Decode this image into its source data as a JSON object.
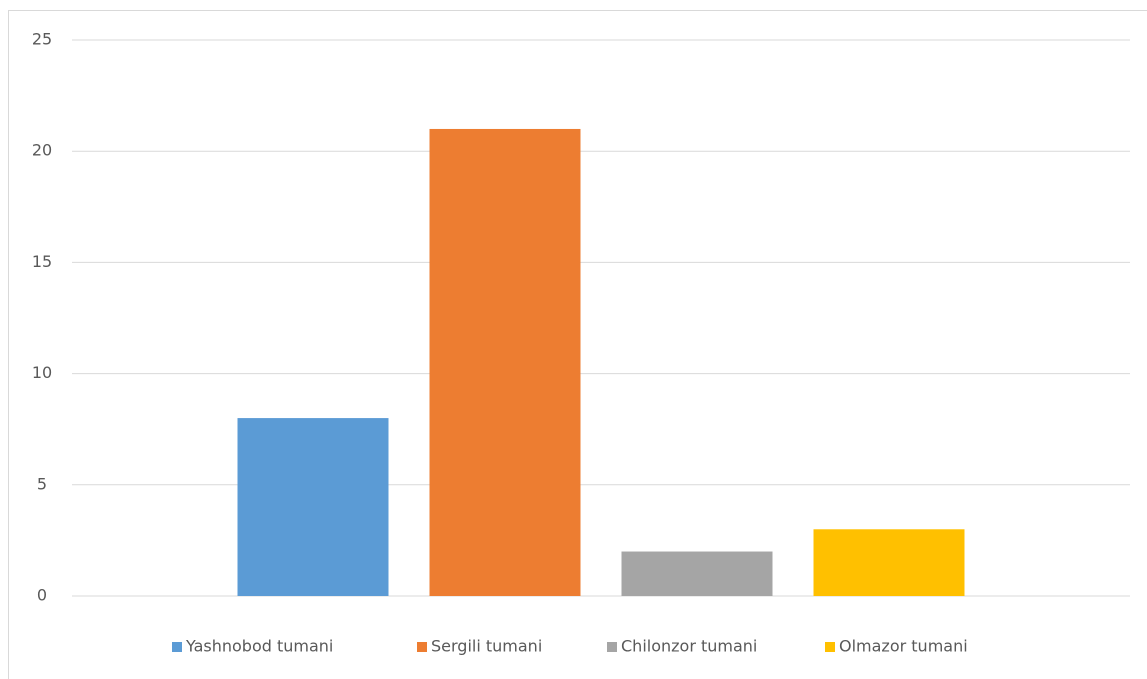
{
  "chart_data": {
    "type": "bar",
    "categories": [
      null
    ],
    "series": [
      {
        "name": "Yashnobod tumani",
        "color": "#5b9bd5",
        "values": [
          8
        ]
      },
      {
        "name": "Sergili tumani",
        "color": "#ed7d31",
        "values": [
          21
        ]
      },
      {
        "name": "Chilonzor tumani",
        "color": "#a5a5a5",
        "values": [
          2
        ]
      },
      {
        "name": "Olmazor tumani",
        "color": "#ffc000",
        "values": [
          3
        ]
      }
    ],
    "ylim": [
      0,
      25
    ],
    "yticks": [
      0,
      5,
      10,
      15,
      20,
      25
    ],
    "grid": true,
    "legend": "bottom"
  }
}
